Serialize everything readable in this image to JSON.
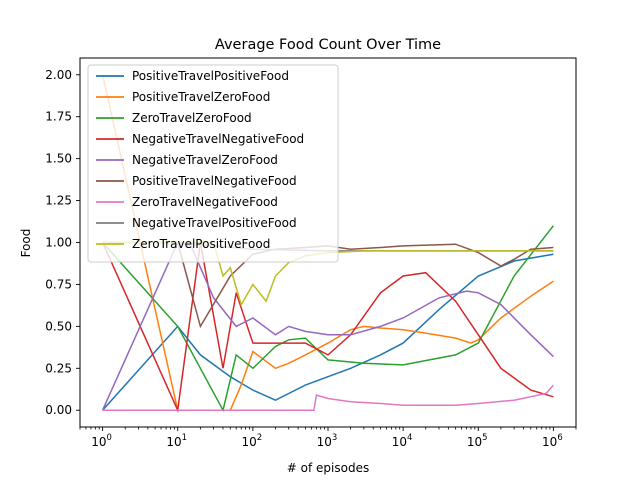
{
  "chart_data": {
    "type": "line",
    "title": "Average Food Count Over Time",
    "xlabel": "# of episodes",
    "ylabel": "Food",
    "xscale": "log",
    "xlim": [
      0.5,
      2000000
    ],
    "ylim": [
      -0.1,
      2.1
    ],
    "xticks": [
      {
        "value": 1,
        "base": "10",
        "exp": "0"
      },
      {
        "value": 10,
        "base": "10",
        "exp": "1"
      },
      {
        "value": 100,
        "base": "10",
        "exp": "2"
      },
      {
        "value": 1000,
        "base": "10",
        "exp": "3"
      },
      {
        "value": 10000,
        "base": "10",
        "exp": "4"
      },
      {
        "value": 100000,
        "base": "10",
        "exp": "5"
      },
      {
        "value": 1000000,
        "base": "10",
        "exp": "6"
      }
    ],
    "yticks": [
      "0.00",
      "0.25",
      "0.50",
      "0.75",
      "1.00",
      "1.25",
      "1.50",
      "1.75",
      "2.00"
    ],
    "grid": false,
    "legend_position": "upper-left",
    "series": [
      {
        "name": "PositiveTravelPositiveFood",
        "color": "#1f77b4",
        "x": [
          1,
          10,
          20,
          50,
          100,
          200,
          300,
          500,
          1000,
          2000,
          5000,
          10000,
          30000,
          100000,
          300000,
          1000000
        ],
        "y": [
          0.0,
          0.5,
          0.33,
          0.2,
          0.12,
          0.06,
          0.1,
          0.15,
          0.2,
          0.25,
          0.33,
          0.4,
          0.6,
          0.8,
          0.89,
          0.93
        ]
      },
      {
        "name": "PositiveTravelZeroFood",
        "color": "#ff7f0e",
        "x": [
          1,
          10,
          30,
          50,
          70,
          100,
          200,
          300,
          500,
          1000,
          2000,
          3000,
          5000,
          10000,
          20000,
          50000,
          80000,
          100000,
          200000,
          500000,
          1000000
        ],
        "y": [
          2.0,
          0.0,
          0.0,
          0.0,
          0.15,
          0.35,
          0.25,
          0.28,
          0.33,
          0.4,
          0.48,
          0.5,
          0.49,
          0.48,
          0.46,
          0.43,
          0.4,
          0.42,
          0.55,
          0.68,
          0.77
        ]
      },
      {
        "name": "ZeroTravelZeroFood",
        "color": "#2ca02c",
        "x": [
          1,
          10,
          40,
          60,
          100,
          200,
          300,
          500,
          1000,
          3000,
          10000,
          50000,
          100000,
          300000,
          1000000
        ],
        "y": [
          1.0,
          0.5,
          0.0,
          0.33,
          0.25,
          0.38,
          0.42,
          0.43,
          0.3,
          0.28,
          0.27,
          0.33,
          0.4,
          0.8,
          1.1
        ]
      },
      {
        "name": "NegativeTravelNegativeFood",
        "color": "#d62728",
        "x": [
          1,
          10,
          20,
          40,
          60,
          100,
          200,
          500,
          1000,
          2000,
          5000,
          10000,
          20000,
          50000,
          100000,
          200000,
          500000,
          1000000
        ],
        "y": [
          1.0,
          0.0,
          1.0,
          0.25,
          0.7,
          0.4,
          0.4,
          0.4,
          0.33,
          0.45,
          0.7,
          0.8,
          0.82,
          0.65,
          0.45,
          0.25,
          0.12,
          0.08
        ]
      },
      {
        "name": "NegativeTravelZeroFood",
        "color": "#9467bd",
        "x": [
          1,
          10,
          15,
          30,
          60,
          100,
          200,
          300,
          500,
          1000,
          2000,
          5000,
          10000,
          30000,
          70000,
          100000,
          200000,
          500000,
          1000000
        ],
        "y": [
          0.0,
          1.0,
          0.98,
          0.67,
          0.5,
          0.55,
          0.45,
          0.5,
          0.47,
          0.45,
          0.45,
          0.5,
          0.55,
          0.67,
          0.71,
          0.7,
          0.63,
          0.45,
          0.32
        ]
      },
      {
        "name": "PositiveTravelNegativeFood",
        "color": "#8c564b",
        "x": [
          1,
          10,
          20,
          50,
          100,
          200,
          500,
          1000,
          2000,
          5000,
          10000,
          50000,
          100000,
          200000,
          300000,
          500000,
          1000000
        ],
        "y": [
          1.0,
          1.0,
          0.5,
          0.8,
          0.93,
          0.96,
          0.97,
          0.98,
          0.96,
          0.97,
          0.98,
          0.99,
          0.94,
          0.86,
          0.9,
          0.96,
          0.97
        ]
      },
      {
        "name": "ZeroTravelNegativeFood",
        "color": "#e377c2",
        "x": [
          1,
          10,
          100,
          650,
          700,
          1000,
          2000,
          5000,
          10000,
          20000,
          50000,
          100000,
          300000,
          800000,
          1000000
        ],
        "y": [
          0.0,
          0.0,
          0.0,
          0.0,
          0.09,
          0.07,
          0.05,
          0.04,
          0.03,
          0.03,
          0.03,
          0.04,
          0.06,
          0.1,
          0.15
        ]
      },
      {
        "name": "NegativeTravelPositiveFood",
        "color": "#7f7f7f",
        "x": [
          1,
          10,
          100,
          1000,
          10000,
          100000,
          1000000
        ],
        "y": [
          1.0,
          1.0,
          0.96,
          0.95,
          0.95,
          0.95,
          0.95
        ]
      },
      {
        "name": "ZeroTravelPositiveFood",
        "color": "#bcbd22",
        "x": [
          1,
          10,
          20,
          30,
          40,
          50,
          70,
          100,
          150,
          200,
          300,
          500,
          1000,
          3000,
          10000,
          100000,
          1000000
        ],
        "y": [
          1.0,
          1.0,
          1.0,
          1.0,
          0.8,
          0.85,
          0.63,
          0.75,
          0.65,
          0.8,
          0.88,
          0.92,
          0.94,
          0.95,
          0.95,
          0.95,
          0.95
        ]
      }
    ]
  }
}
